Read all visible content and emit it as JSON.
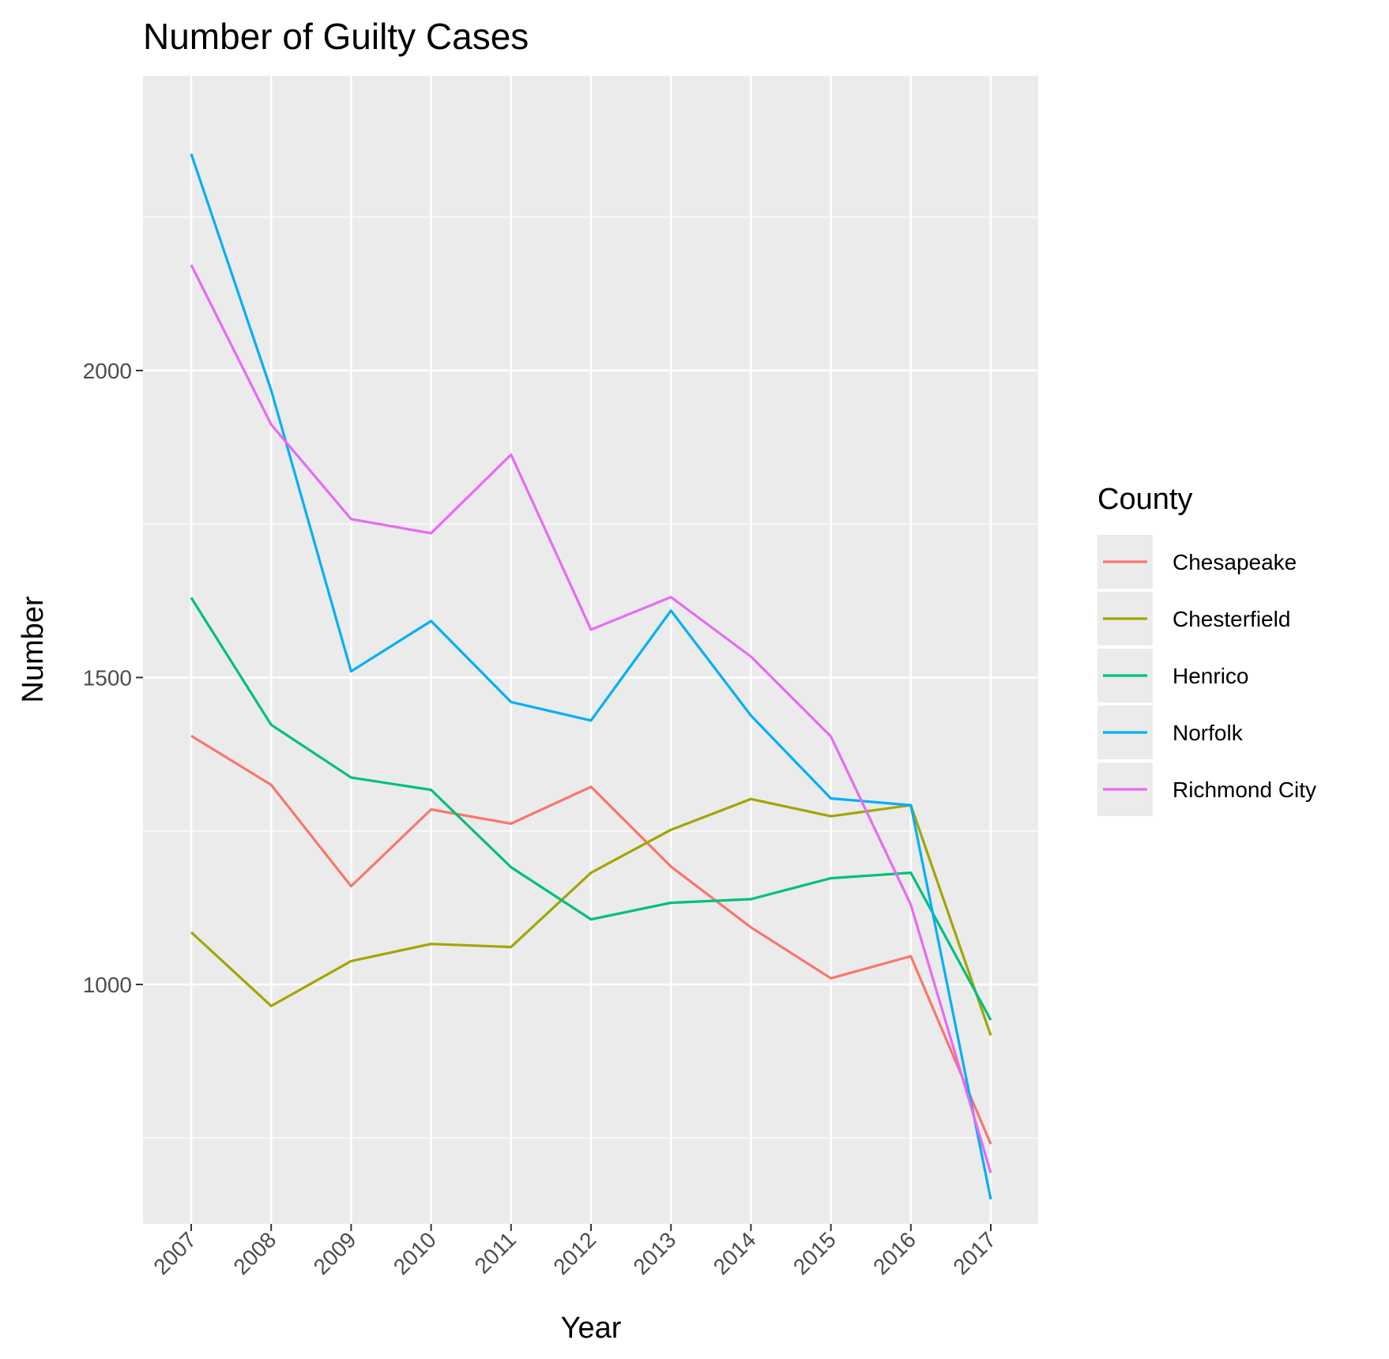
{
  "chart_data": {
    "type": "line",
    "title": "Number of Guilty Cases",
    "xlabel": "Year",
    "ylabel": "Number",
    "x": [
      "2007",
      "2008",
      "2009",
      "2010",
      "2011",
      "2012",
      "2013",
      "2014",
      "2015",
      "2016",
      "2017"
    ],
    "yticks": [
      1000,
      1500,
      2000
    ],
    "ylim": [
      610,
      2480
    ],
    "grid": true,
    "legend": {
      "title": "County",
      "position": "right"
    },
    "series": [
      {
        "name": "Chesapeake",
        "color": "#F8766D",
        "values": [
          1405,
          1325,
          1160,
          1285,
          1262,
          1322,
          1192,
          1093,
          1010,
          1046,
          740
        ]
      },
      {
        "name": "Chesterfield",
        "color": "#A3A500",
        "values": [
          1085,
          965,
          1038,
          1066,
          1061,
          1182,
          1252,
          1302,
          1274,
          1292,
          917
        ]
      },
      {
        "name": "Henrico",
        "color": "#00BF7D",
        "values": [
          1630,
          1423,
          1337,
          1317,
          1191,
          1106,
          1133,
          1139,
          1173,
          1182,
          942
        ]
      },
      {
        "name": "Norfolk",
        "color": "#00B0F6",
        "values": [
          2353,
          1968,
          1510,
          1592,
          1460,
          1430,
          1609,
          1438,
          1303,
          1292,
          650
        ]
      },
      {
        "name": "Richmond City",
        "color": "#E76BF3",
        "values": [
          2172,
          1912,
          1758,
          1735,
          1863,
          1578,
          1631,
          1534,
          1404,
          1130,
          693
        ]
      }
    ]
  }
}
